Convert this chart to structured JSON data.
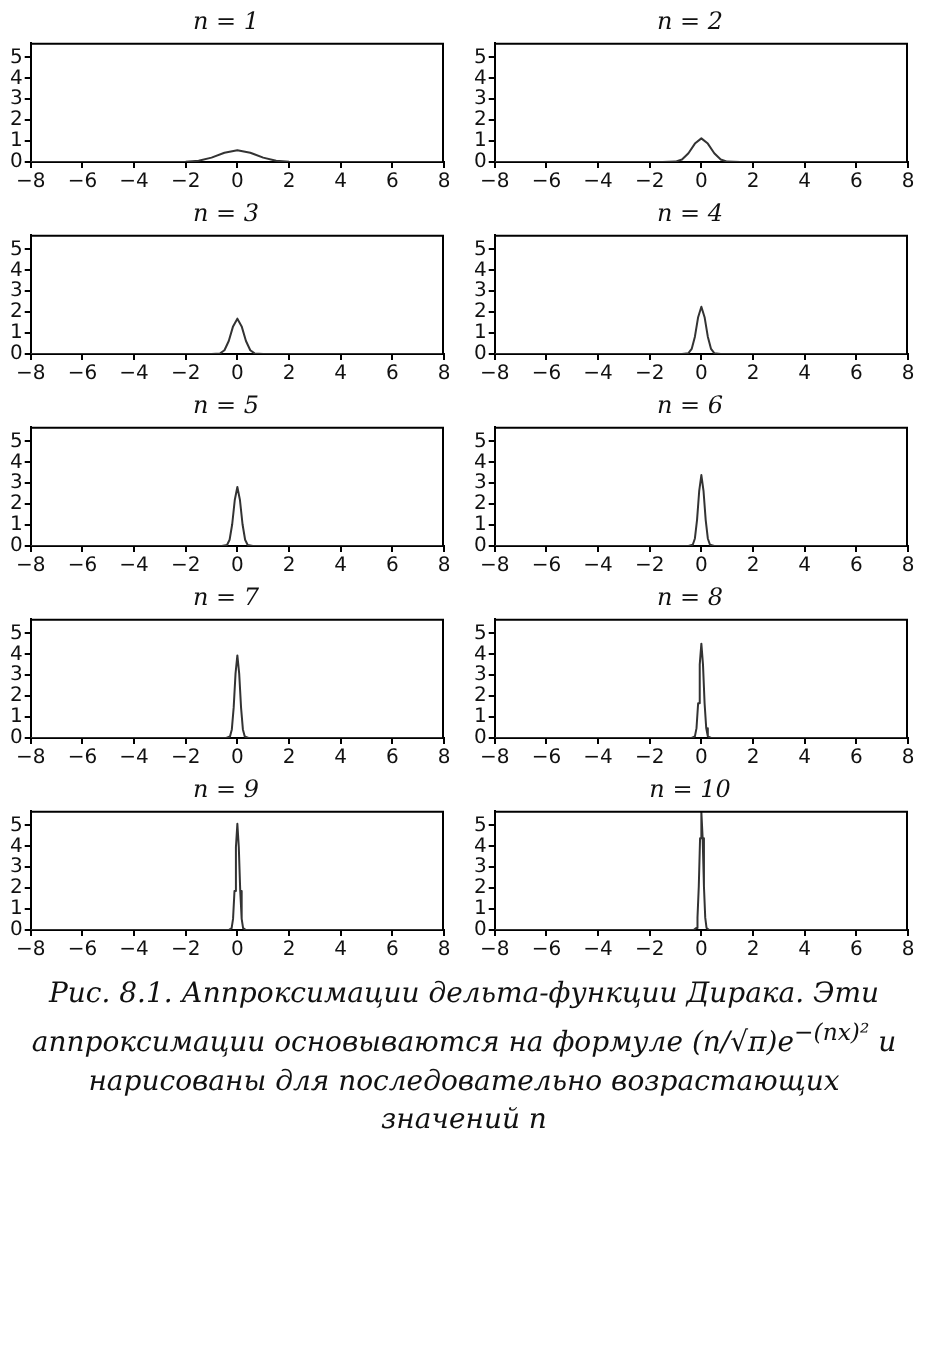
{
  "chart_data": [
    {
      "type": "line",
      "title": "n = 1",
      "x": [
        -8,
        -3,
        -2,
        -1.5,
        -1,
        -0.5,
        0,
        0.5,
        1,
        1.5,
        2,
        3,
        8
      ],
      "values": [
        0,
        0,
        0.01,
        0.06,
        0.21,
        0.44,
        0.56,
        0.44,
        0.21,
        0.06,
        0.01,
        0,
        0
      ],
      "color": "#333333",
      "xlim": [
        -8,
        8
      ],
      "xticks": [
        -8,
        -6,
        -4,
        -2,
        0,
        2,
        4,
        6,
        8
      ],
      "ylim": [
        0,
        5.7
      ],
      "yticks": [
        0,
        1,
        2,
        3,
        4,
        5
      ],
      "grid": false,
      "legend": false
    },
    {
      "type": "line",
      "title": "n = 2",
      "x": [
        -8,
        -1.5,
        -1,
        -0.75,
        -0.5,
        -0.25,
        0,
        0.25,
        0.5,
        0.75,
        1,
        1.5,
        8
      ],
      "values": [
        0,
        0,
        0.02,
        0.12,
        0.42,
        0.88,
        1.13,
        0.88,
        0.42,
        0.12,
        0.02,
        0,
        0
      ],
      "color": "#333333",
      "xlim": [
        -8,
        8
      ],
      "xticks": [
        -8,
        -6,
        -4,
        -2,
        0,
        2,
        4,
        6,
        8
      ],
      "ylim": [
        0,
        5.7
      ],
      "yticks": [
        0,
        1,
        2,
        3,
        4,
        5
      ],
      "grid": false,
      "legend": false
    },
    {
      "type": "line",
      "title": "n = 3",
      "x": [
        -8,
        -1,
        -0.667,
        -0.5,
        -0.333,
        -0.167,
        0,
        0.167,
        0.333,
        0.5,
        0.667,
        1,
        8
      ],
      "values": [
        0,
        0,
        0.03,
        0.18,
        0.62,
        1.32,
        1.69,
        1.32,
        0.62,
        0.18,
        0.03,
        0,
        0
      ],
      "color": "#333333",
      "xlim": [
        -8,
        8
      ],
      "xticks": [
        -8,
        -6,
        -4,
        -2,
        0,
        2,
        4,
        6,
        8
      ],
      "ylim": [
        0,
        5.7
      ],
      "yticks": [
        0,
        1,
        2,
        3,
        4,
        5
      ],
      "grid": false,
      "legend": false
    },
    {
      "type": "line",
      "title": "n = 4",
      "x": [
        -8,
        -0.75,
        -0.5,
        -0.375,
        -0.25,
        -0.125,
        0,
        0.125,
        0.25,
        0.375,
        0.5,
        0.75,
        8
      ],
      "values": [
        0,
        0,
        0.04,
        0.24,
        0.83,
        1.76,
        2.26,
        1.76,
        0.83,
        0.24,
        0.04,
        0,
        0
      ],
      "color": "#333333",
      "xlim": [
        -8,
        8
      ],
      "xticks": [
        -8,
        -6,
        -4,
        -2,
        0,
        2,
        4,
        6,
        8
      ],
      "ylim": [
        0,
        5.7
      ],
      "yticks": [
        0,
        1,
        2,
        3,
        4,
        5
      ],
      "grid": false,
      "legend": false
    },
    {
      "type": "line",
      "title": "n = 5",
      "x": [
        -8,
        -0.6,
        -0.4,
        -0.3,
        -0.2,
        -0.1,
        0,
        0.1,
        0.2,
        0.3,
        0.4,
        0.6,
        8
      ],
      "values": [
        0,
        0,
        0.05,
        0.3,
        1.04,
        2.2,
        2.82,
        2.2,
        1.04,
        0.3,
        0.05,
        0,
        0
      ],
      "color": "#333333",
      "xlim": [
        -8,
        8
      ],
      "xticks": [
        -8,
        -6,
        -4,
        -2,
        0,
        2,
        4,
        6,
        8
      ],
      "ylim": [
        0,
        5.7
      ],
      "yticks": [
        0,
        1,
        2,
        3,
        4,
        5
      ],
      "grid": false,
      "legend": false
    },
    {
      "type": "line",
      "title": "n = 6",
      "x": [
        -8,
        -0.5,
        -0.333,
        -0.25,
        -0.167,
        -0.083,
        0,
        0.083,
        0.167,
        0.25,
        0.333,
        0.5,
        8
      ],
      "values": [
        0,
        0,
        0.06,
        0.36,
        1.25,
        2.64,
        3.39,
        2.64,
        1.25,
        0.36,
        0.06,
        0,
        0
      ],
      "color": "#333333",
      "xlim": [
        -8,
        8
      ],
      "xticks": [
        -8,
        -6,
        -4,
        -2,
        0,
        2,
        4,
        6,
        8
      ],
      "ylim": [
        0,
        5.7
      ],
      "yticks": [
        0,
        1,
        2,
        3,
        4,
        5
      ],
      "grid": false,
      "legend": false
    },
    {
      "type": "line",
      "title": "n = 7",
      "x": [
        -8,
        -0.429,
        -0.286,
        -0.214,
        -0.143,
        -0.071,
        0,
        0.071,
        0.143,
        0.214,
        0.286,
        0.429,
        8
      ],
      "values": [
        0,
        0,
        0.07,
        0.41,
        1.45,
        3.08,
        3.95,
        3.08,
        1.45,
        0.41,
        0.07,
        0,
        0
      ],
      "color": "#333333",
      "xlim": [
        -8,
        8
      ],
      "xticks": [
        -8,
        -6,
        -4,
        -2,
        0,
        2,
        4,
        6,
        8
      ],
      "ylim": [
        0,
        5.7
      ],
      "yticks": [
        0,
        1,
        2,
        3,
        4,
        5
      ],
      "grid": false,
      "legend": false
    },
    {
      "type": "line",
      "title": "n = 8",
      "x": [
        -8,
        -0.375,
        -0.25,
        -0.188,
        -0.125,
        -0.063,
        0,
        0.063,
        0.125,
        0.188,
        0.25,
        0.375,
        8
      ],
      "values": [
        0,
        0,
        0.08,
        0.47,
        1.66,
        3.51,
        4.51,
        3.51,
        1.66,
        0.47,
        0.08,
        0,
        0
      ],
      "color": "#333333",
      "xlim": [
        -8,
        8
      ],
      "xticks": [
        -8,
        -6,
        -4,
        -2,
        0,
        2,
        4,
        6,
        8
      ],
      "ylim": [
        0,
        5.7
      ],
      "yticks": [
        0,
        1,
        2,
        3,
        4,
        5
      ],
      "grid": false,
      "legend": false
    },
    {
      "type": "line",
      "title": "n = 9",
      "x": [
        -8,
        -0.333,
        -0.222,
        -0.167,
        -0.111,
        -0.056,
        0,
        0.056,
        0.111,
        0.167,
        0.222,
        0.333,
        8
      ],
      "values": [
        0,
        0,
        0.09,
        0.53,
        1.87,
        3.96,
        5.08,
        3.96,
        1.87,
        0.53,
        0.09,
        0,
        0
      ],
      "color": "#333333",
      "xlim": [
        -8,
        8
      ],
      "xticks": [
        -8,
        -6,
        -4,
        -2,
        0,
        2,
        4,
        6,
        8
      ],
      "ylim": [
        0,
        5.7
      ],
      "yticks": [
        0,
        1,
        2,
        3,
        4,
        5
      ],
      "grid": false,
      "legend": false
    },
    {
      "type": "line",
      "title": "n = 10",
      "x": [
        -8,
        -0.3,
        -0.2,
        -0.15,
        -0.1,
        -0.05,
        0,
        0.05,
        0.1,
        0.15,
        0.2,
        0.3,
        8
      ],
      "values": [
        0,
        0,
        0.1,
        0.59,
        2.08,
        4.39,
        5.64,
        4.39,
        2.08,
        0.59,
        0.1,
        0,
        0
      ],
      "color": "#333333",
      "xlim": [
        -8,
        8
      ],
      "xticks": [
        -8,
        -6,
        -4,
        -2,
        0,
        2,
        4,
        6,
        8
      ],
      "ylim": [
        0,
        5.7
      ],
      "yticks": [
        0,
        1,
        2,
        3,
        4,
        5
      ],
      "grid": false,
      "legend": false,
      "annotations": [
        "Рис. 8.1. Аппроксимации дельта-функции Дирака. Эти аппроксимации основываются на формуле (n/√π)e$^{−(nx)²}$ и нарисованы для последовательно возрастающих значений n"
      ]
    }
  ]
}
